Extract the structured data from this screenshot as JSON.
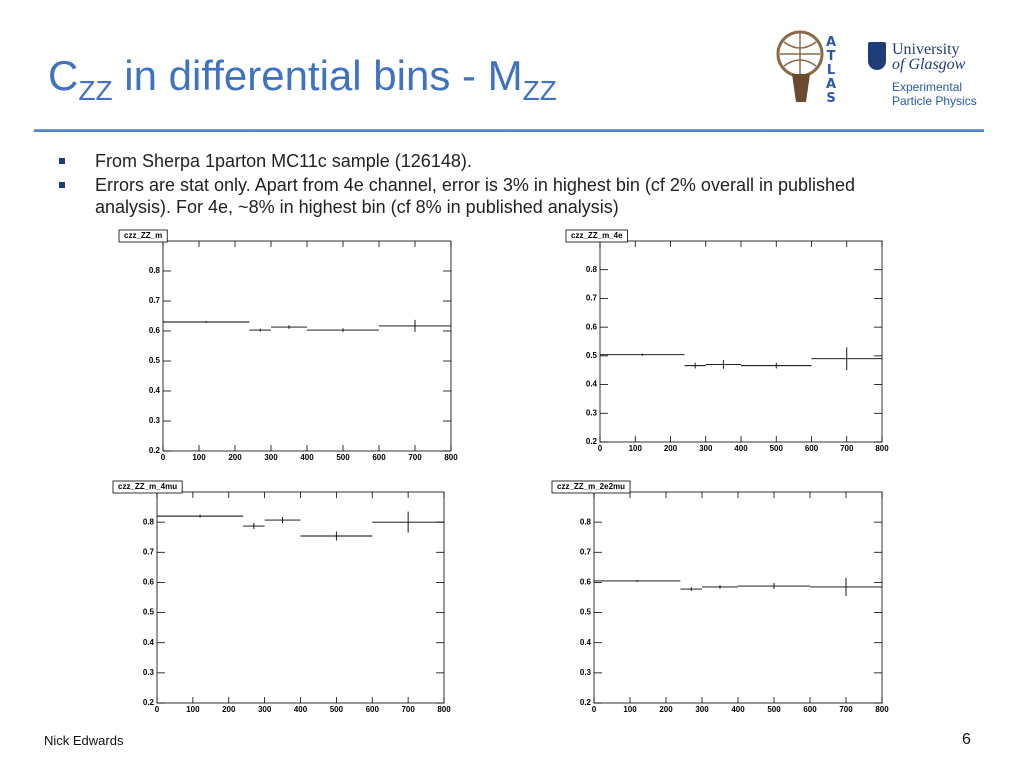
{
  "header": {
    "title": {
      "main": "C",
      "sub": "ZZ",
      "rest": "in differential bins - M",
      "sub2": "ZZ"
    },
    "atlas": [
      "A",
      "T",
      "L",
      "A",
      "S"
    ],
    "university": [
      "University",
      "of Glasgow"
    ],
    "group": [
      "Experimental",
      "Particle Physics"
    ]
  },
  "bullets": [
    "From Sherpa 1parton MC11c sample (126148).",
    "Errors are stat only.  Apart from 4e channel, error is 3% in highest bin (cf 2% overall in published analysis). For 4e, ~8% in highest bin (cf 8% in published analysis)"
  ],
  "footer": {
    "author": "Nick Edwards",
    "page": "6"
  },
  "chart_data": [
    {
      "type": "histogram",
      "title": "czz_ZZ_m",
      "bins": [
        0,
        240,
        300,
        400,
        600,
        800
      ],
      "values": [
        0.63,
        0.603,
        0.613,
        0.603,
        0.617
      ],
      "errors": [
        0.003,
        0.005,
        0.006,
        0.006,
        0.02
      ],
      "xlim": [
        0,
        800
      ],
      "xticks": [
        0,
        100,
        200,
        300,
        400,
        500,
        600,
        700,
        800
      ],
      "ylim": [
        0.2,
        0.9
      ],
      "yticks": [
        0.2,
        0.3,
        0.4,
        0.5,
        0.6,
        0.7,
        0.8
      ],
      "color": "#000000"
    },
    {
      "type": "histogram",
      "title": "czz_ZZ_m_4e",
      "bins": [
        0,
        240,
        300,
        400,
        600,
        800
      ],
      "values": [
        0.504,
        0.466,
        0.47,
        0.466,
        0.49
      ],
      "errors": [
        0.004,
        0.01,
        0.015,
        0.01,
        0.04
      ],
      "xlim": [
        0,
        800
      ],
      "xticks": [
        0,
        100,
        200,
        300,
        400,
        500,
        600,
        700,
        800
      ],
      "ylim": [
        0.2,
        0.9
      ],
      "yticks": [
        0.2,
        0.3,
        0.4,
        0.5,
        0.6,
        0.7,
        0.8
      ],
      "color": "#000000"
    },
    {
      "type": "histogram",
      "title": "czz_ZZ_m_4mu",
      "bins": [
        0,
        240,
        300,
        400,
        600,
        800
      ],
      "values": [
        0.82,
        0.787,
        0.807,
        0.754,
        0.8
      ],
      "errors": [
        0.005,
        0.01,
        0.01,
        0.015,
        0.035
      ],
      "xlim": [
        0,
        800
      ],
      "xticks": [
        0,
        100,
        200,
        300,
        400,
        500,
        600,
        700,
        800
      ],
      "ylim": [
        0.2,
        0.9
      ],
      "yticks": [
        0.2,
        0.3,
        0.4,
        0.5,
        0.6,
        0.7,
        0.8
      ],
      "color": "#000000"
    },
    {
      "type": "histogram",
      "title": "czz_ZZ_m_2e2mu",
      "bins": [
        0,
        240,
        300,
        400,
        600,
        800
      ],
      "values": [
        0.605,
        0.578,
        0.585,
        0.588,
        0.585
      ],
      "errors": [
        0.003,
        0.006,
        0.006,
        0.01,
        0.03
      ],
      "xlim": [
        0,
        800
      ],
      "xticks": [
        0,
        100,
        200,
        300,
        400,
        500,
        600,
        700,
        800
      ],
      "ylim": [
        0.2,
        0.9
      ],
      "yticks": [
        0.2,
        0.3,
        0.4,
        0.5,
        0.6,
        0.7,
        0.8
      ],
      "color": "#000000"
    }
  ]
}
